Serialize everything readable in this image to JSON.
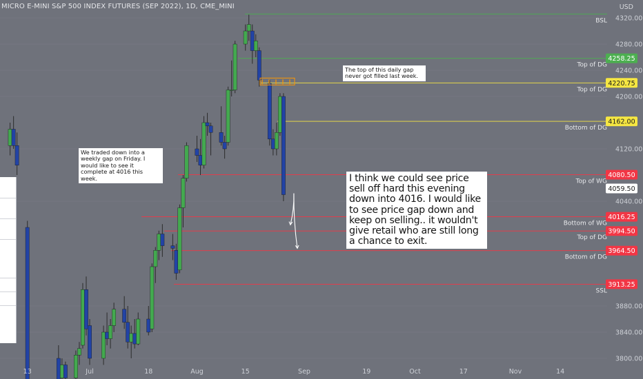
{
  "header": {
    "title": "MICRO E-MINI S&P 500 INDEX FUTURES (SEP 2022), 1D, CME_MINI",
    "currency": "USD"
  },
  "annotations": {
    "gap_note": "The top of this daily gap never got filled last week.",
    "weekly_note": "We traded down into a weekly gap on Friday. I would like to see it complete at 4016 this week.",
    "main_note": "I think we could see price sell off hard this evening down into 4016. I would like to see price gap down and keep on selling.. it wouldn't give retail who are still long a chance to exit."
  },
  "colors": {
    "background": "#6f727b",
    "bull_body": "#43a94f",
    "bear_body": "#2243a5",
    "wick": "#2c2c2c",
    "green_level": "#4caf50",
    "yellow_level": "#f5e642",
    "red_level": "#f23645",
    "current_price_badge": "#ffffff",
    "annotation_orange": "#ff9800"
  },
  "chart_data": {
    "type": "candlestick",
    "symbol": "MICRO E-MINI S&P 500 INDEX FUTURES (SEP 2022)",
    "timeframe": "1D",
    "exchange": "CME_MINI",
    "ylim": [
      3790,
      4335
    ],
    "y_ticks": [
      "4320.00",
      "4280.00",
      "4240.00",
      "4200.00",
      "4120.00",
      "4040.00",
      "3880.00",
      "3840.00",
      "3800.00"
    ],
    "x_ticks": [
      {
        "label": "13",
        "date": "2022-06-13"
      },
      {
        "label": "Jul",
        "date": "2022-07-01"
      },
      {
        "label": "18",
        "date": "2022-07-18"
      },
      {
        "label": "Aug",
        "date": "2022-08-01"
      },
      {
        "label": "15",
        "date": "2022-08-15"
      },
      {
        "label": "Sep",
        "date": "2022-09-01"
      },
      {
        "label": "19",
        "date": "2022-09-19"
      },
      {
        "label": "Oct",
        "date": "2022-10-03"
      },
      {
        "label": "17",
        "date": "2022-10-17"
      },
      {
        "label": "Nov",
        "date": "2022-11-01"
      },
      {
        "label": "14",
        "date": "2022-11-14"
      }
    ],
    "candles": [
      {
        "date": "2022-06-08",
        "o": 4125,
        "h": 4160,
        "l": 4110,
        "c": 4150
      },
      {
        "date": "2022-06-09",
        "o": 4150,
        "h": 4170,
        "l": 4120,
        "c": 4125
      },
      {
        "date": "2022-06-10",
        "o": 4125,
        "h": 4145,
        "l": 4080,
        "c": 4095
      },
      {
        "date": "2022-06-13",
        "o": 4000,
        "h": 4010,
        "l": 3745,
        "c": 3760
      },
      {
        "date": "2022-06-22",
        "o": 3800,
        "h": 3820,
        "l": 3740,
        "c": 3760
      },
      {
        "date": "2022-06-23",
        "o": 3770,
        "h": 3800,
        "l": 3745,
        "c": 3790
      },
      {
        "date": "2022-06-24",
        "o": 3790,
        "h": 3795,
        "l": 3755,
        "c": 3770
      },
      {
        "date": "2022-06-27",
        "o": 3770,
        "h": 3812,
        "l": 3760,
        "c": 3805
      },
      {
        "date": "2022-06-28",
        "o": 3805,
        "h": 3825,
        "l": 3790,
        "c": 3815
      },
      {
        "date": "2022-06-29",
        "o": 3820,
        "h": 3915,
        "l": 3815,
        "c": 3905
      },
      {
        "date": "2022-06-30",
        "o": 3905,
        "h": 3925,
        "l": 3835,
        "c": 3845
      },
      {
        "date": "2022-07-01",
        "o": 3850,
        "h": 3860,
        "l": 3790,
        "c": 3800
      },
      {
        "date": "2022-07-05",
        "o": 3800,
        "h": 3850,
        "l": 3790,
        "c": 3840
      },
      {
        "date": "2022-07-06",
        "o": 3840,
        "h": 3870,
        "l": 3820,
        "c": 3830
      },
      {
        "date": "2022-07-07",
        "o": 3830,
        "h": 3860,
        "l": 3815,
        "c": 3850
      },
      {
        "date": "2022-07-08",
        "o": 3850,
        "h": 3885,
        "l": 3840,
        "c": 3875
      },
      {
        "date": "2022-07-11",
        "o": 3875,
        "h": 3895,
        "l": 3845,
        "c": 3855
      },
      {
        "date": "2022-07-12",
        "o": 3855,
        "h": 3880,
        "l": 3815,
        "c": 3825
      },
      {
        "date": "2022-07-13",
        "o": 3825,
        "h": 3850,
        "l": 3800,
        "c": 3838
      },
      {
        "date": "2022-07-14",
        "o": 3838,
        "h": 3860,
        "l": 3815,
        "c": 3822
      },
      {
        "date": "2022-07-15",
        "o": 3822,
        "h": 3870,
        "l": 3820,
        "c": 3860
      },
      {
        "date": "2022-07-18",
        "o": 3860,
        "h": 3880,
        "l": 3835,
        "c": 3840
      },
      {
        "date": "2022-07-19",
        "o": 3845,
        "h": 3945,
        "l": 3840,
        "c": 3940
      },
      {
        "date": "2022-07-20",
        "o": 3940,
        "h": 3970,
        "l": 3915,
        "c": 3965
      },
      {
        "date": "2022-07-21",
        "o": 3965,
        "h": 3995,
        "l": 3950,
        "c": 3990
      },
      {
        "date": "2022-07-22",
        "o": 3990,
        "h": 4005,
        "l": 3955,
        "c": 3972
      },
      {
        "date": "2022-07-25",
        "o": 3972,
        "h": 3990,
        "l": 3950,
        "c": 3968
      },
      {
        "date": "2022-07-26",
        "o": 3965,
        "h": 3975,
        "l": 3920,
        "c": 3930
      },
      {
        "date": "2022-07-27",
        "o": 3935,
        "h": 4035,
        "l": 3930,
        "c": 4030
      },
      {
        "date": "2022-07-28",
        "o": 4030,
        "h": 4080,
        "l": 4000,
        "c": 4075
      },
      {
        "date": "2022-07-29",
        "o": 4075,
        "h": 4130,
        "l": 4070,
        "c": 4125
      },
      {
        "date": "2022-08-01",
        "o": 4120,
        "h": 4140,
        "l": 4100,
        "c": 4110
      },
      {
        "date": "2022-08-02",
        "o": 4110,
        "h": 4135,
        "l": 4080,
        "c": 4095
      },
      {
        "date": "2022-08-03",
        "o": 4095,
        "h": 4170,
        "l": 4090,
        "c": 4160
      },
      {
        "date": "2022-08-04",
        "o": 4160,
        "h": 4175,
        "l": 4140,
        "c": 4155
      },
      {
        "date": "2022-08-05",
        "o": 4155,
        "h": 4160,
        "l": 4110,
        "c": 4145
      },
      {
        "date": "2022-08-08",
        "o": 4145,
        "h": 4185,
        "l": 4125,
        "c": 4130
      },
      {
        "date": "2022-08-09",
        "o": 4130,
        "h": 4140,
        "l": 4105,
        "c": 4120
      },
      {
        "date": "2022-08-10",
        "o": 4130,
        "h": 4215,
        "l": 4125,
        "c": 4210
      },
      {
        "date": "2022-08-11",
        "o": 4210,
        "h": 4255,
        "l": 4200,
        "c": 4210
      },
      {
        "date": "2022-08-12",
        "o": 4210,
        "h": 4285,
        "l": 4205,
        "c": 4280
      },
      {
        "date": "2022-08-15",
        "o": 4280,
        "h": 4310,
        "l": 4270,
        "c": 4300
      },
      {
        "date": "2022-08-16",
        "o": 4300,
        "h": 4325,
        "l": 4285,
        "c": 4310
      },
      {
        "date": "2022-08-17",
        "o": 4300,
        "h": 4310,
        "l": 4250,
        "c": 4270
      },
      {
        "date": "2022-08-18",
        "o": 4270,
        "h": 4295,
        "l": 4260,
        "c": 4285
      },
      {
        "date": "2022-08-19",
        "o": 4270,
        "h": 4275,
        "l": 4215,
        "c": 4225
      },
      {
        "date": "2022-08-22",
        "o": 4220,
        "h": 4225,
        "l": 4125,
        "c": 4135
      },
      {
        "date": "2022-08-23",
        "o": 4135,
        "h": 4150,
        "l": 4110,
        "c": 4120
      },
      {
        "date": "2022-08-24",
        "o": 4120,
        "h": 4160,
        "l": 4110,
        "c": 4145
      },
      {
        "date": "2022-08-25",
        "o": 4145,
        "h": 4205,
        "l": 4140,
        "c": 4200
      },
      {
        "date": "2022-08-26",
        "o": 4200,
        "h": 4205,
        "l": 4040,
        "c": 4050
      }
    ],
    "levels": [
      {
        "label": "BSL",
        "value": 4326,
        "color": "#4caf50",
        "badge": false
      },
      {
        "label": "Top of DG",
        "value": 4258.25,
        "color": "#4caf50",
        "badge": true,
        "badge_text": "4258.25",
        "badge_color": "#4caf50"
      },
      {
        "label": "Top of DG",
        "value": 4220.75,
        "color": "#f5e642",
        "badge": true,
        "badge_text": "4220.75",
        "badge_color": "#f5e642"
      },
      {
        "label": "Bottom of DG",
        "value": 4162.0,
        "color": "#f5e642",
        "badge": true,
        "badge_text": "4162.00",
        "badge_color": "#f5e642"
      },
      {
        "label": "Top of WG",
        "value": 4080.5,
        "color": "#f23645",
        "badge": true,
        "badge_text": "4080.50",
        "badge_color": "#f23645"
      },
      {
        "label": "Bottom of WG",
        "value": 4016.25,
        "color": "#f23645",
        "badge": true,
        "badge_text": "4016.25",
        "badge_color": "#f23645"
      },
      {
        "label": "Top of DG",
        "value": 3994.5,
        "color": "#f23645",
        "badge": true,
        "badge_text": "3994.50",
        "badge_color": "#f23645"
      },
      {
        "label": "Bottom of DG",
        "value": 3964.5,
        "color": "#f23645",
        "badge": true,
        "badge_text": "3964.50",
        "badge_color": "#f23645"
      },
      {
        "label": "SSL",
        "value": 3913.25,
        "color": "#f23645",
        "badge": true,
        "badge_text": "3913.25",
        "badge_color": "#f23645"
      }
    ],
    "current_price": {
      "value": 4059.5,
      "text": "4059.50"
    },
    "projection_arrows": [
      {
        "from": {
          "date": "2022-08-29",
          "value": 4052
        },
        "to": {
          "date": "2022-08-28",
          "value": 4004
        }
      },
      {
        "from": {
          "date": "2022-08-29",
          "value": 4052
        },
        "to": {
          "date": "2022-08-30",
          "value": 3968
        }
      }
    ]
  }
}
